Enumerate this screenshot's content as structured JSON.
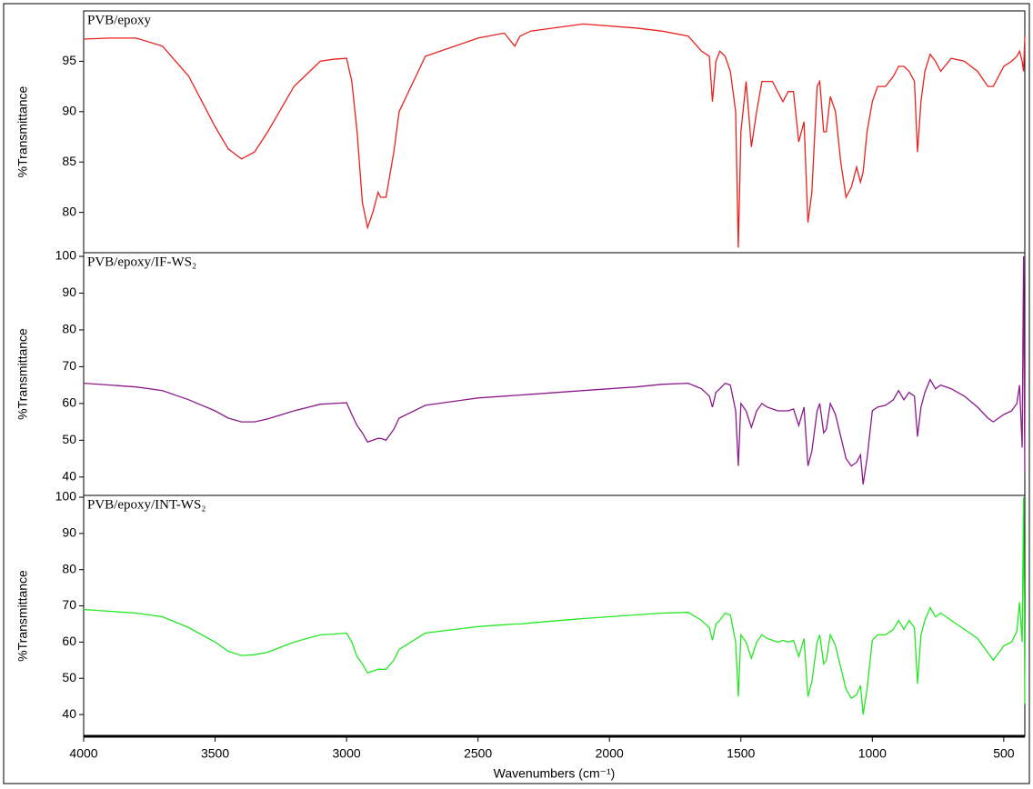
{
  "chart_data": [
    {
      "type": "line",
      "title": "PVB/epoxy",
      "ylabel": "%Transmittance",
      "x": [
        4000,
        3900,
        3800,
        3700,
        3600,
        3500,
        3450,
        3400,
        3350,
        3300,
        3200,
        3100,
        3050,
        3000,
        2980,
        2960,
        2940,
        2920,
        2900,
        2880,
        2870,
        2850,
        2820,
        2800,
        2700,
        2500,
        2400,
        2360,
        2340,
        2300,
        2100,
        1900,
        1800,
        1700,
        1650,
        1620,
        1608,
        1595,
        1580,
        1560,
        1540,
        1520,
        1510,
        1500,
        1480,
        1460,
        1440,
        1420,
        1400,
        1380,
        1360,
        1340,
        1320,
        1300,
        1280,
        1260,
        1245,
        1230,
        1210,
        1200,
        1185,
        1175,
        1160,
        1140,
        1120,
        1100,
        1080,
        1060,
        1045,
        1035,
        1020,
        1000,
        980,
        950,
        920,
        900,
        880,
        860,
        840,
        828,
        815,
        800,
        780,
        760,
        740,
        700,
        650,
        600,
        560,
        540,
        500,
        470,
        450,
        440,
        430,
        425,
        420
      ],
      "series": [
        {
          "name": "PVB/epoxy",
          "color": "#e8221e",
          "values": [
            97.2,
            97.3,
            97.3,
            96.5,
            93.5,
            88.5,
            86.3,
            85.3,
            86.0,
            88,
            92.5,
            95.0,
            95.2,
            95.3,
            93,
            88,
            81,
            78.5,
            80,
            82,
            81.5,
            81.5,
            86,
            90,
            95.5,
            97.3,
            97.8,
            96.5,
            97.5,
            98,
            98.7,
            98.3,
            98.0,
            97.5,
            96,
            95.5,
            91,
            95,
            96,
            95.5,
            94,
            90,
            76.5,
            88,
            93,
            86.5,
            90,
            93,
            93,
            93,
            92,
            91,
            92,
            92,
            87,
            89,
            79,
            82,
            92.5,
            93,
            88,
            88,
            91.5,
            90,
            85,
            81.5,
            82.5,
            84.5,
            83,
            84,
            88,
            91,
            92.5,
            92.5,
            93.5,
            94.5,
            94.5,
            94,
            93,
            86,
            91,
            94,
            95.7,
            95,
            94,
            95.3,
            95,
            94,
            92.5,
            92.5,
            94.5,
            95,
            95.5,
            96,
            95,
            94,
            97.5
          ]
        }
      ],
      "xlim": [
        4000,
        420
      ],
      "ylim": [
        76,
        100
      ],
      "yticks": [
        80,
        85,
        90,
        95
      ]
    },
    {
      "type": "line",
      "title": "PVB/epoxy/IF-WS₂",
      "ylabel": "%Transmittance",
      "x": [
        4000,
        3900,
        3800,
        3700,
        3600,
        3500,
        3450,
        3400,
        3350,
        3300,
        3200,
        3100,
        3050,
        3000,
        2980,
        2960,
        2940,
        2920,
        2900,
        2880,
        2870,
        2850,
        2820,
        2800,
        2700,
        2500,
        2400,
        2360,
        2340,
        2300,
        2100,
        1900,
        1800,
        1700,
        1650,
        1620,
        1608,
        1595,
        1580,
        1560,
        1540,
        1520,
        1510,
        1500,
        1480,
        1460,
        1440,
        1420,
        1400,
        1380,
        1360,
        1340,
        1320,
        1300,
        1280,
        1260,
        1245,
        1230,
        1210,
        1200,
        1185,
        1175,
        1160,
        1140,
        1120,
        1100,
        1080,
        1060,
        1045,
        1035,
        1020,
        1000,
        980,
        950,
        920,
        900,
        880,
        860,
        840,
        828,
        815,
        800,
        780,
        760,
        740,
        700,
        650,
        600,
        560,
        540,
        500,
        470,
        450,
        440,
        430,
        425,
        420
      ],
      "series": [
        {
          "name": "PVB/epoxy/IF-WS₂",
          "color": "#8b1a8b",
          "values": [
            65.5,
            65,
            64.5,
            63.5,
            61,
            58,
            56,
            55,
            55,
            55.8,
            58,
            59.8,
            60,
            60.2,
            57,
            54,
            52,
            49.5,
            50,
            50.5,
            50.5,
            50,
            53,
            56,
            59.5,
            61.5,
            62,
            62.2,
            62.3,
            62.5,
            63.5,
            64.5,
            65.2,
            65.5,
            64,
            62,
            59,
            63,
            64,
            65.5,
            65,
            58,
            43,
            60,
            58,
            53.5,
            58,
            60,
            59,
            58.5,
            58,
            58,
            58,
            58.5,
            54,
            59,
            43,
            47,
            58,
            60,
            52,
            53,
            60,
            57,
            51,
            45,
            43,
            44,
            46,
            38,
            45,
            58,
            59,
            59.5,
            61,
            63.5,
            61,
            63,
            62,
            51,
            59,
            63,
            66.5,
            64,
            65,
            64,
            62,
            59,
            56,
            55,
            57,
            58,
            60,
            65,
            48,
            100,
            41
          ]
        }
      ],
      "xlim": [
        4000,
        420
      ],
      "ylim": [
        35,
        101
      ],
      "yticks": [
        40,
        50,
        60,
        70,
        80,
        90,
        100
      ]
    },
    {
      "type": "line",
      "title": "PVB/epoxy/INT-WS₂",
      "ylabel": "%Transmittance",
      "xlabel": "Wavenumbers (cm⁻¹)",
      "x": [
        4000,
        3900,
        3800,
        3700,
        3600,
        3500,
        3450,
        3400,
        3350,
        3300,
        3200,
        3100,
        3050,
        3000,
        2980,
        2960,
        2940,
        2920,
        2900,
        2880,
        2870,
        2850,
        2820,
        2800,
        2700,
        2500,
        2400,
        2360,
        2340,
        2300,
        2100,
        1900,
        1800,
        1700,
        1650,
        1620,
        1608,
        1595,
        1580,
        1560,
        1540,
        1520,
        1510,
        1500,
        1480,
        1460,
        1440,
        1420,
        1400,
        1380,
        1360,
        1340,
        1320,
        1300,
        1280,
        1260,
        1245,
        1230,
        1210,
        1200,
        1185,
        1175,
        1160,
        1140,
        1120,
        1100,
        1080,
        1060,
        1045,
        1035,
        1020,
        1000,
        980,
        950,
        920,
        900,
        880,
        860,
        840,
        828,
        815,
        800,
        780,
        760,
        740,
        700,
        650,
        600,
        560,
        540,
        500,
        470,
        450,
        440,
        430,
        425,
        420
      ],
      "series": [
        {
          "name": "PVB/epoxy/INT-WS₂",
          "color": "#22e822",
          "values": [
            69,
            68.5,
            68,
            67,
            64,
            60,
            57.5,
            56.3,
            56.5,
            57.2,
            60,
            62,
            62.2,
            62.5,
            60,
            56,
            54,
            51.5,
            52,
            52.5,
            52.5,
            52.5,
            55,
            58,
            62.5,
            64.3,
            64.8,
            65,
            65,
            65.3,
            66.5,
            67.5,
            68,
            68.2,
            66,
            64,
            60.5,
            65,
            66,
            68,
            67.5,
            60,
            45,
            62,
            60,
            55.5,
            60,
            62,
            61,
            60.5,
            60,
            60.5,
            60,
            60.5,
            56,
            61,
            45,
            49,
            60,
            62,
            54,
            55,
            62,
            59,
            53,
            47,
            44.5,
            45.5,
            48,
            40,
            47,
            60.5,
            62,
            62,
            63.5,
            66,
            63.5,
            66,
            64,
            48.5,
            62,
            66,
            69.5,
            67,
            68,
            66,
            63.5,
            61,
            57,
            55,
            59,
            60,
            63,
            71,
            60,
            100,
            43
          ]
        }
      ],
      "xlim": [
        4000,
        420
      ],
      "ylim": [
        34,
        100.5
      ],
      "yticks": [
        40,
        50,
        60,
        70,
        80,
        90,
        100
      ],
      "xticks": [
        4000,
        3500,
        3000,
        2500,
        2000,
        1500,
        1000,
        500
      ]
    }
  ]
}
